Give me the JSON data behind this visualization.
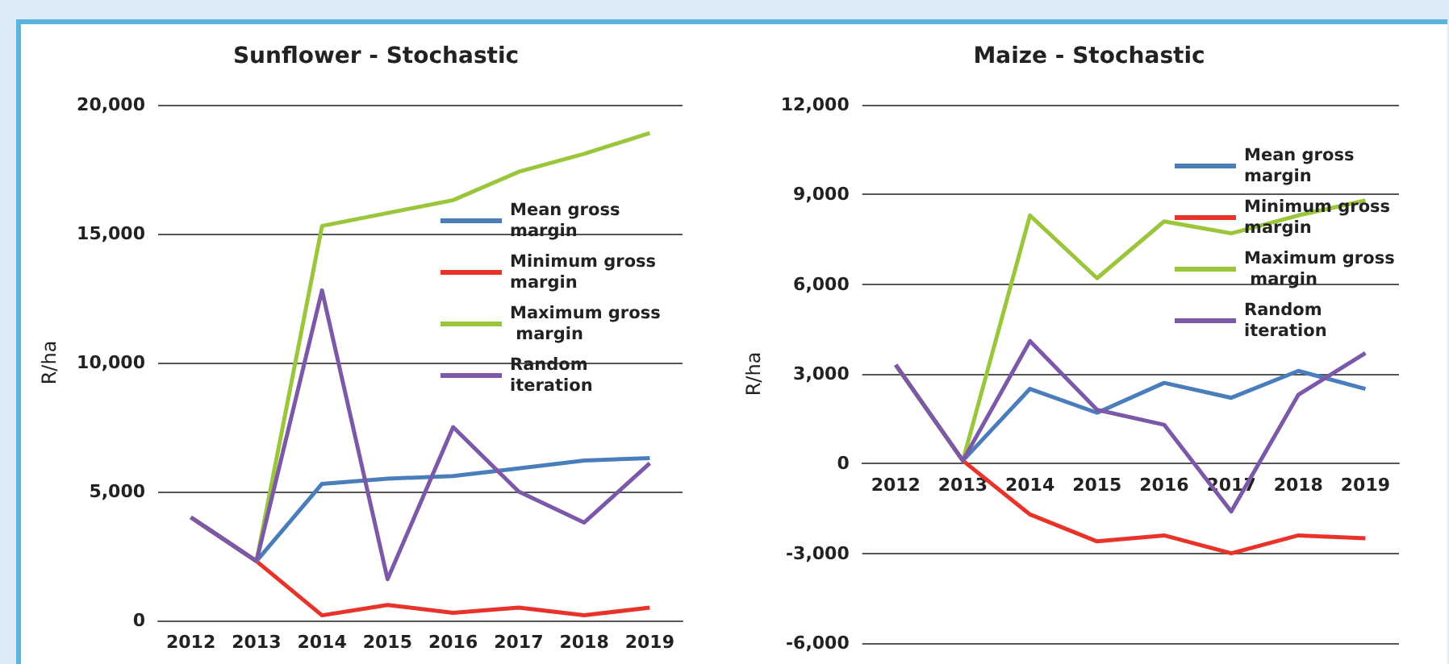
{
  "chart_data": [
    {
      "type": "line",
      "title": "Sunflower - Stochastic",
      "ylabel": "R/ha",
      "categories": [
        "2012",
        "2013",
        "2014",
        "2015",
        "2016",
        "2017",
        "2018",
        "2019"
      ],
      "ylim": [
        0,
        20000
      ],
      "yticks": [
        0,
        {
          "value": 5000,
          "label": "5,000"
        },
        {
          "value": 10000,
          "label": "10,000"
        },
        {
          "value": 15000,
          "label": "15,000"
        },
        {
          "value": 20000,
          "label": "20,000"
        }
      ],
      "grid": "y",
      "legend": "top right",
      "marker": "none",
      "series": [
        {
          "name": "Mean gross margin",
          "color": "#4a7ebb",
          "values": [
            4000,
            2300,
            5300,
            5500,
            5600,
            5900,
            6200,
            6300
          ]
        },
        {
          "name": "Minimum gross margin",
          "color": "#e8322a",
          "values": [
            4000,
            2300,
            200,
            600,
            300,
            500,
            200,
            500
          ]
        },
        {
          "name": "Maximum gross margin",
          "color": "#9bc63b",
          "values": [
            4000,
            2300,
            15300,
            15800,
            16300,
            17400,
            18100,
            18900
          ]
        },
        {
          "name": "Random iteration",
          "color": "#7b58a8",
          "values": [
            4000,
            2300,
            12800,
            1600,
            7500,
            5000,
            3800,
            6100
          ]
        }
      ]
    },
    {
      "type": "line",
      "title": "Maize - Stochastic",
      "ylabel": "R/ha",
      "categories": [
        "2012",
        "2013",
        "2014",
        "2015",
        "2016",
        "2017",
        "2018",
        "2019"
      ],
      "ylim": [
        -6000,
        12000
      ],
      "yticks": [
        {
          "value": -6000,
          "label": "-6,000"
        },
        {
          "value": -3000,
          "label": "-3,000"
        },
        0,
        {
          "value": 3000,
          "label": "3,000"
        },
        {
          "value": 6000,
          "label": "6,000"
        },
        {
          "value": 9000,
          "label": "9,000"
        },
        {
          "value": 12000,
          "label": "12,000"
        }
      ],
      "grid": "y",
      "legend": "top right",
      "marker": "none",
      "series": [
        {
          "name": "Mean gross margin",
          "color": "#4a7ebb",
          "values": [
            3300,
            100,
            2500,
            1700,
            2700,
            2200,
            3100,
            2500
          ]
        },
        {
          "name": "Minimum gross margin",
          "color": "#e8322a",
          "values": [
            3300,
            100,
            -1700,
            -2600,
            -2400,
            -3000,
            -2400,
            -2500
          ]
        },
        {
          "name": "Maximum gross margin",
          "color": "#9bc63b",
          "values": [
            3300,
            100,
            8300,
            6200,
            8100,
            7700,
            8300,
            8800
          ]
        },
        {
          "name": "Random iteration",
          "color": "#7b58a8",
          "values": [
            3300,
            100,
            4100,
            1800,
            1300,
            -1600,
            2300,
            3700
          ]
        }
      ]
    }
  ]
}
